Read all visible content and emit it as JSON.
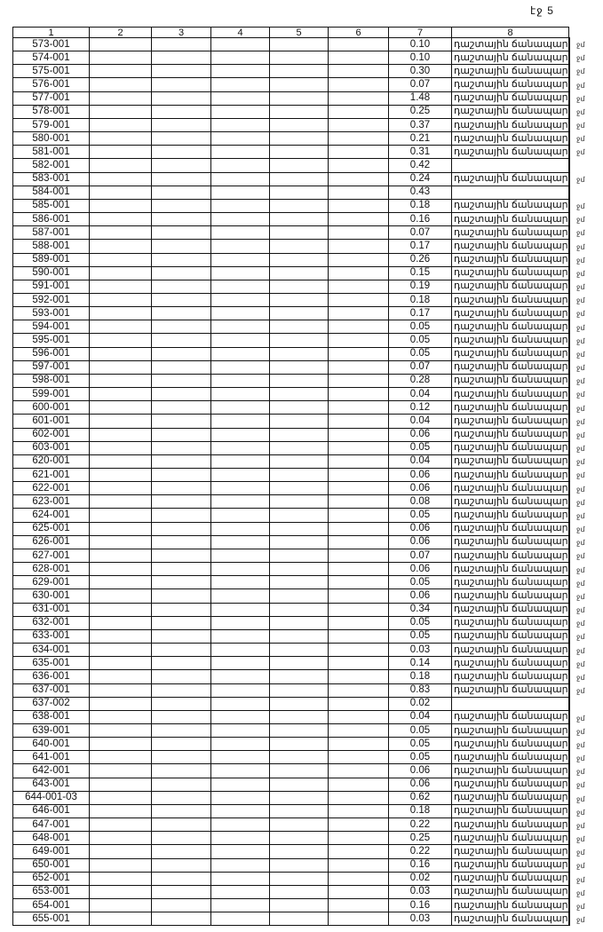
{
  "page_number": "էջ 5",
  "headers": [
    "1",
    "2",
    "3",
    "4",
    "5",
    "6",
    "7",
    "8"
  ],
  "road_label": "դաշտային ճանապար",
  "margin_mark": "ջմ",
  "rows": [
    {
      "id": "573-001",
      "area": "0.10",
      "road": true
    },
    {
      "id": "574-001",
      "area": "0.10",
      "road": true
    },
    {
      "id": "575-001",
      "area": "0.30",
      "road": true
    },
    {
      "id": "576-001",
      "area": "0.07",
      "road": true
    },
    {
      "id": "577-001",
      "area": "1.48",
      "road": true
    },
    {
      "id": "578-001",
      "area": "0.25",
      "road": true
    },
    {
      "id": "579-001",
      "area": "0.37",
      "road": true
    },
    {
      "id": "580-001",
      "area": "0.21",
      "road": true
    },
    {
      "id": "581-001",
      "area": "0.31",
      "road": true
    },
    {
      "id": "582-001",
      "area": "0.42",
      "road": false
    },
    {
      "id": "583-001",
      "area": "0.24",
      "road": true
    },
    {
      "id": "584-001",
      "area": "0.43",
      "road": false
    },
    {
      "id": "585-001",
      "area": "0.18",
      "road": true
    },
    {
      "id": "586-001",
      "area": "0.16",
      "road": true
    },
    {
      "id": "587-001",
      "area": "0.07",
      "road": true
    },
    {
      "id": "588-001",
      "area": "0.17",
      "road": true
    },
    {
      "id": "589-001",
      "area": "0.26",
      "road": true
    },
    {
      "id": "590-001",
      "area": "0.15",
      "road": true
    },
    {
      "id": "591-001",
      "area": "0.19",
      "road": true
    },
    {
      "id": "592-001",
      "area": "0.18",
      "road": true
    },
    {
      "id": "593-001",
      "area": "0.17",
      "road": true
    },
    {
      "id": "594-001",
      "area": "0.05",
      "road": true
    },
    {
      "id": "595-001",
      "area": "0.05",
      "road": true
    },
    {
      "id": "596-001",
      "area": "0.05",
      "road": true
    },
    {
      "id": "597-001",
      "area": "0.07",
      "road": true
    },
    {
      "id": "598-001",
      "area": "0.28",
      "road": true
    },
    {
      "id": "599-001",
      "area": "0.04",
      "road": true
    },
    {
      "id": "600-001",
      "area": "0.12",
      "road": true
    },
    {
      "id": "601-001",
      "area": "0.04",
      "road": true
    },
    {
      "id": "602-001",
      "area": "0.06",
      "road": true
    },
    {
      "id": "603-001",
      "area": "0.05",
      "road": true
    },
    {
      "id": "620-001",
      "area": "0.04",
      "road": true
    },
    {
      "id": "621-001",
      "area": "0.06",
      "road": true
    },
    {
      "id": "622-001",
      "area": "0.06",
      "road": true
    },
    {
      "id": "623-001",
      "area": "0.08",
      "road": true
    },
    {
      "id": "624-001",
      "area": "0.05",
      "road": true
    },
    {
      "id": "625-001",
      "area": "0.06",
      "road": true
    },
    {
      "id": "626-001",
      "area": "0.06",
      "road": true
    },
    {
      "id": "627-001",
      "area": "0.07",
      "road": true
    },
    {
      "id": "628-001",
      "area": "0.06",
      "road": true
    },
    {
      "id": "629-001",
      "area": "0.05",
      "road": true
    },
    {
      "id": "630-001",
      "area": "0.06",
      "road": true
    },
    {
      "id": "631-001",
      "area": "0.34",
      "road": true
    },
    {
      "id": "632-001",
      "area": "0.05",
      "road": true
    },
    {
      "id": "633-001",
      "area": "0.05",
      "road": true
    },
    {
      "id": "634-001",
      "area": "0.03",
      "road": true
    },
    {
      "id": "635-001",
      "area": "0.14",
      "road": true
    },
    {
      "id": "636-001",
      "area": "0.18",
      "road": true
    },
    {
      "id": "637-001",
      "area": "0.83",
      "road": true
    },
    {
      "id": "637-002",
      "area": "0.02",
      "road": false
    },
    {
      "id": "638-001",
      "area": "0.04",
      "road": true
    },
    {
      "id": "639-001",
      "area": "0.05",
      "road": true
    },
    {
      "id": "640-001",
      "area": "0.05",
      "road": true
    },
    {
      "id": "641-001",
      "area": "0.05",
      "road": true
    },
    {
      "id": "642-001",
      "area": "0.06",
      "road": true
    },
    {
      "id": "643-001",
      "area": "0.06",
      "road": true
    },
    {
      "id": "644-001-03",
      "area": "0.62",
      "road": true
    },
    {
      "id": "646-001",
      "area": "0.18",
      "road": true
    },
    {
      "id": "647-001",
      "area": "0.22",
      "road": true
    },
    {
      "id": "648-001",
      "area": "0.25",
      "road": true
    },
    {
      "id": "649-001",
      "area": "0.22",
      "road": true
    },
    {
      "id": "650-001",
      "area": "0.16",
      "road": true
    },
    {
      "id": "652-001",
      "area": "0.02",
      "road": true
    },
    {
      "id": "653-001",
      "area": "0.03",
      "road": true
    },
    {
      "id": "654-001",
      "area": "0.16",
      "road": true
    },
    {
      "id": "655-001",
      "area": "0.03",
      "road": true
    }
  ]
}
